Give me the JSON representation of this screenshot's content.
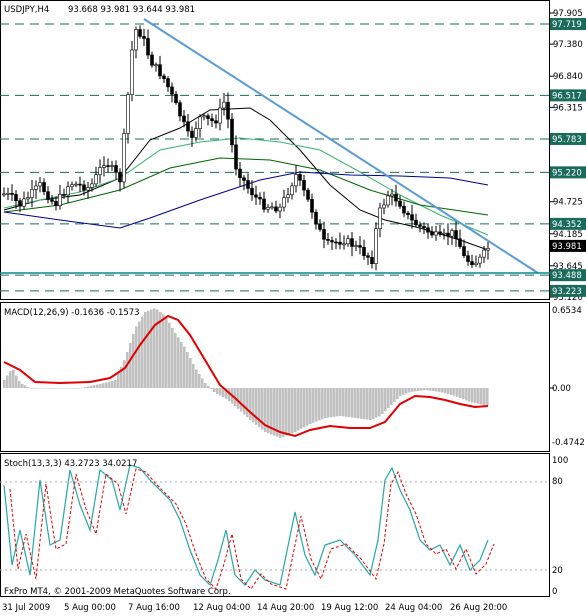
{
  "header": {
    "symbol": "USDJPY,H4",
    "ohlc": "93.668 93.981 93.644 93.981"
  },
  "copyright": "FxPro MT4, © 2001-2009 MetaQuotes Software Corp.",
  "colors": {
    "candle": "#000000",
    "trendline": "#5b9bd5",
    "hline": "#1a6b5c",
    "sma_fast": "#000000",
    "sma_mid": "#3cb371",
    "sma_slow": "#006400",
    "sma_long": "#00008b",
    "macd_hist": "#c0c0c0",
    "macd_signal": "#e00000",
    "stoch_main": "#2aa6a6",
    "stoch_signal": "#e00000",
    "support": "#008b8b"
  },
  "price_axis": {
    "ticks": [
      "97.905",
      "97.380",
      "96.840",
      "96.315",
      "95.790",
      "95.250",
      "94.725",
      "94.185",
      "93.645",
      "93.120"
    ],
    "range": [
      93.12,
      97.905
    ]
  },
  "levels": [
    {
      "value": 97.719,
      "label": "97.719"
    },
    {
      "value": 96.517,
      "label": "96.517"
    },
    {
      "value": 95.783,
      "label": "95.783"
    },
    {
      "value": 95.22,
      "label": "95.220"
    },
    {
      "value": 94.352,
      "label": "94.352"
    },
    {
      "value": 93.488,
      "label": "93.488"
    },
    {
      "value": 93.223,
      "label": "93.223"
    }
  ],
  "current_price": {
    "value": 93.981,
    "label": "93.981"
  },
  "macd": {
    "title": "MACD(12,26,9) -0.1636 -0.1573",
    "ticks": [
      "0.6534",
      "0.00",
      "-0.4742"
    ],
    "range": [
      -0.4742,
      0.6534
    ]
  },
  "stoch": {
    "title": "Stoch(13,3,3) 43.2723 34.0217",
    "ticks": [
      "100",
      "80",
      "20",
      "0"
    ],
    "range": [
      0,
      100
    ]
  },
  "time_axis": [
    "31 Jul 2009",
    "5 Aug 00:00",
    "7 Aug 16:00",
    "12 Aug 04:00",
    "14 Aug 20:00",
    "19 Aug 12:00",
    "24 Aug 04:00",
    "26 Aug 20:00"
  ],
  "chart_data": {
    "type": "line",
    "title": "USDJPY,H4",
    "x": [
      "31 Jul 2009",
      "5 Aug 00:00",
      "7 Aug 16:00",
      "12 Aug 04:00",
      "14 Aug 20:00",
      "19 Aug 12:00",
      "24 Aug 04:00",
      "26 Aug 20:00"
    ],
    "series": [
      {
        "values": [
          94.7,
          94.6,
          97.7,
          95.8,
          95.2,
          93.8,
          94.8,
          93.98
        ]
      }
    ],
    "ylim": [
      93.12,
      97.905
    ]
  }
}
